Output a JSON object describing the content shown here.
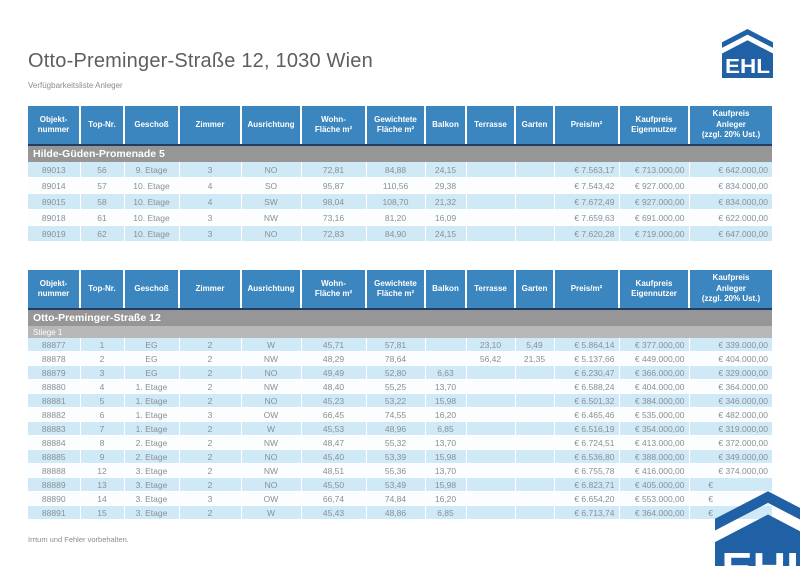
{
  "header": {
    "title": "Otto-Preminger-Straße 12, 1030 Wien",
    "subtitle": "Verfügbarkeitsliste Anleger"
  },
  "branding": {
    "logo_text": "EHL"
  },
  "footer": {
    "note": "Irrtum und Fehler vorbehalten."
  },
  "colors": {
    "header_blue": "#3b86bf",
    "navy_line": "#223c64",
    "section_gray": "#969696",
    "subsection_gray": "#b8b8b8",
    "stripe_blue": "#cfe9f7",
    "row_text_gray": "#8a9095",
    "logo_blue": "#2060a5"
  },
  "columns": [
    "Objekt-\nnummer",
    "Top-Nr.",
    "Geschoß",
    "Zimmer",
    "Ausrichtung",
    "Wohn-\nFläche m²",
    "Gewichtete\nFläche m²",
    "Balkon",
    "Terrasse",
    "Garten",
    "Preis/m²",
    "Kaufpreis\nEigennutzer",
    "Kaufpreis\nAnleger\n(zzgl. 20% Ust.)"
  ],
  "tables": [
    {
      "section": "Hilde-Güden-Promenade 5",
      "subsection": null,
      "rows": [
        [
          "89013",
          "56",
          "9. Etage",
          "3",
          "NO",
          "72,81",
          "84,88",
          "24,15",
          "",
          "",
          "€ 7.563,17",
          "€ 713.000,00",
          "€ 642.000,00"
        ],
        [
          "89014",
          "57",
          "10. Etage",
          "4",
          "SO",
          "95,87",
          "110,56",
          "29,38",
          "",
          "",
          "€ 7.543,42",
          "€ 927.000,00",
          "€ 834.000,00"
        ],
        [
          "89015",
          "58",
          "10. Etage",
          "4",
          "SW",
          "98,04",
          "108,70",
          "21,32",
          "",
          "",
          "€ 7.672,49",
          "€ 927.000,00",
          "€ 834.000,00"
        ],
        [
          "89018",
          "61",
          "10. Etage",
          "3",
          "NW",
          "73,16",
          "81,20",
          "16,09",
          "",
          "",
          "€ 7.659,63",
          "€ 691.000,00",
          "€ 622.000,00"
        ],
        [
          "89019",
          "62",
          "10. Etage",
          "3",
          "NO",
          "72,83",
          "84,90",
          "24,15",
          "",
          "",
          "€ 7.620,28",
          "€ 719.000,00",
          "€ 647.000,00"
        ]
      ]
    },
    {
      "section": "Otto-Preminger-Straße 12",
      "subsection": "Stiege 1",
      "rows": [
        [
          "88877",
          "1",
          "EG",
          "2",
          "W",
          "45,71",
          "57,81",
          "",
          "23,10",
          "5,49",
          "€ 5.864,14",
          "€ 377.000,00",
          "€ 339.000,00"
        ],
        [
          "88878",
          "2",
          "EG",
          "2",
          "NW",
          "48,29",
          "78,64",
          "",
          "56,42",
          "21,35",
          "€ 5.137,66",
          "€ 449.000,00",
          "€ 404.000,00"
        ],
        [
          "88879",
          "3",
          "EG",
          "2",
          "NO",
          "49,49",
          "52,80",
          "6,63",
          "",
          "",
          "€ 6.230,47",
          "€ 366.000,00",
          "€ 329.000,00"
        ],
        [
          "88880",
          "4",
          "1. Etage",
          "2",
          "NW",
          "48,40",
          "55,25",
          "13,70",
          "",
          "",
          "€ 6.588,24",
          "€ 404.000,00",
          "€ 364.000,00"
        ],
        [
          "88881",
          "5",
          "1. Etage",
          "2",
          "NO",
          "45,23",
          "53,22",
          "15,98",
          "",
          "",
          "€ 6.501,32",
          "€ 384.000,00",
          "€ 346.000,00"
        ],
        [
          "88882",
          "6",
          "1. Etage",
          "3",
          "OW",
          "66,45",
          "74,55",
          "16,20",
          "",
          "",
          "€ 6.465,46",
          "€ 535.000,00",
          "€ 482.000,00"
        ],
        [
          "88883",
          "7",
          "1. Etage",
          "2",
          "W",
          "45,53",
          "48,96",
          "6,85",
          "",
          "",
          "€ 6.516,19",
          "€ 354.000,00",
          "€ 319.000,00"
        ],
        [
          "88884",
          "8",
          "2. Etage",
          "2",
          "NW",
          "48,47",
          "55,32",
          "13,70",
          "",
          "",
          "€ 6.724,51",
          "€ 413.000,00",
          "€ 372.000,00"
        ],
        [
          "88885",
          "9",
          "2. Etage",
          "2",
          "NO",
          "45,40",
          "53,39",
          "15,98",
          "",
          "",
          "€ 6.536,80",
          "€ 388.000,00",
          "€ 349.000,00"
        ],
        [
          "88888",
          "12",
          "3. Etage",
          "2",
          "NW",
          "48,51",
          "55,36",
          "13,70",
          "",
          "",
          "€ 6.755,78",
          "€ 416.000,00",
          "€ 374.000,00"
        ],
        [
          "88889",
          "13",
          "3. Etage",
          "2",
          "NO",
          "45,50",
          "53,49",
          "15,98",
          "",
          "",
          "€ 6.823,71",
          "€ 405.000,00",
          "€"
        ],
        [
          "88890",
          "14",
          "3. Etage",
          "3",
          "OW",
          "66,74",
          "74,84",
          "16,20",
          "",
          "",
          "€ 6.654,20",
          "€ 553.000,00",
          "€"
        ],
        [
          "88891",
          "15",
          "3. Etage",
          "2",
          "W",
          "45,43",
          "48,86",
          "6,85",
          "",
          "",
          "€ 6.713,74",
          "€ 364.000,00",
          "€"
        ]
      ]
    }
  ]
}
